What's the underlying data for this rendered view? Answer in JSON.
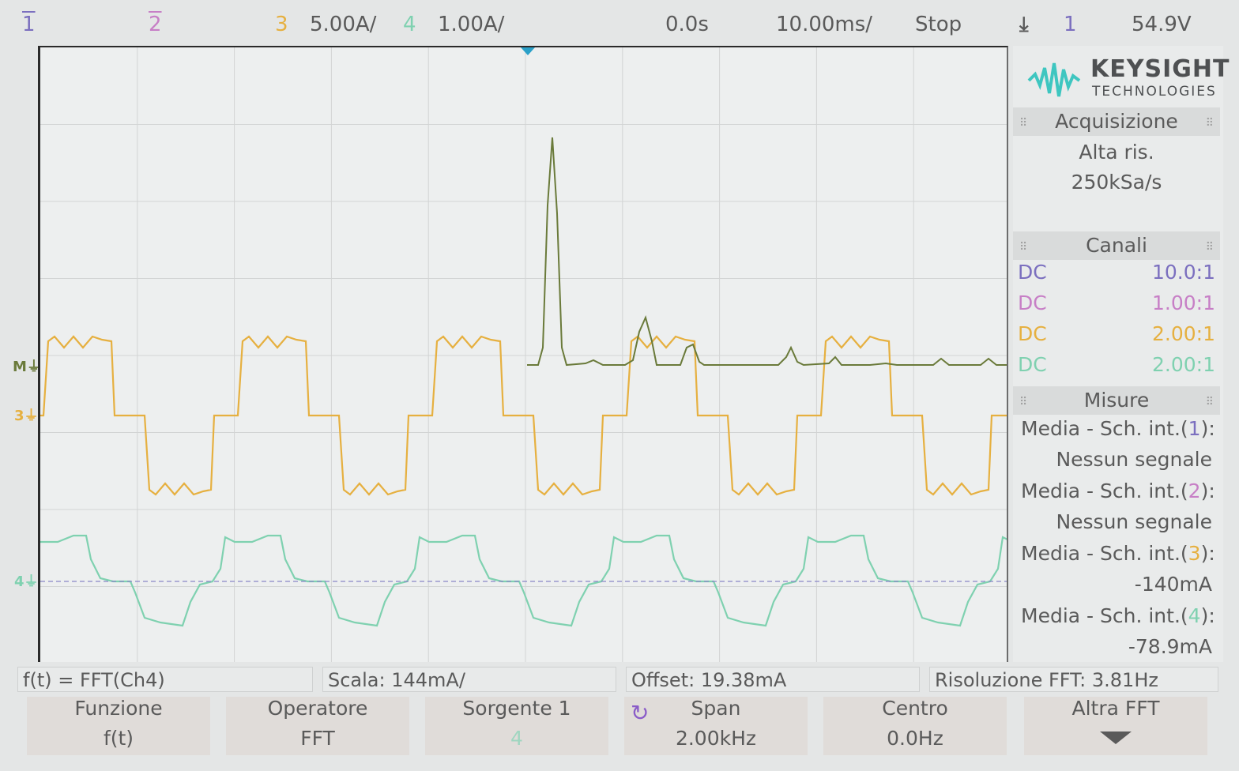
{
  "top_bar": {
    "ch1_label": "1",
    "ch2_label": "2",
    "ch3_label": "3",
    "ch3_scale": "5.00A/",
    "ch4_label": "4",
    "ch4_scale": "1.00A/",
    "time_delay": "0.0s",
    "time_base": "10.00ms/",
    "run_state": "Stop",
    "trigger_source": "1",
    "trigger_level": "54.9V"
  },
  "markers": {
    "math": "M",
    "ch3": "3",
    "ch4": "4"
  },
  "logo": {
    "brand": "KEYSIGHT",
    "sub": "TECHNOLOGIES"
  },
  "acquisition": {
    "title": "Acquisizione",
    "mode": "Alta ris.",
    "rate": "250kSa/s"
  },
  "channels": {
    "title": "Canali",
    "rows": [
      {
        "coupling": "DC",
        "probe": "10.0:1",
        "color": "#7b6fbf"
      },
      {
        "coupling": "DC",
        "probe": "1.00:1",
        "color": "#c77fc6"
      },
      {
        "coupling": "DC",
        "probe": "2.00:1",
        "color": "#e6b040"
      },
      {
        "coupling": "DC",
        "probe": "2.00:1",
        "color": "#7fd1b0"
      }
    ]
  },
  "measurements": {
    "title": "Misure",
    "items": [
      {
        "label_pre": "Media - Sch. int.(",
        "num": "1",
        "label_post": "):",
        "value": "Nessun segnale",
        "color": "#7b6fbf"
      },
      {
        "label_pre": "Media - Sch. int.(",
        "num": "2",
        "label_post": "):",
        "value": "Nessun segnale",
        "color": "#c77fc6"
      },
      {
        "label_pre": "Media - Sch. int.(",
        "num": "3",
        "label_post": "):",
        "value": "-140mA",
        "color": "#e6b040"
      },
      {
        "label_pre": "Media - Sch. int.(",
        "num": "4",
        "label_post": "):",
        "value": "-78.9mA",
        "color": "#7fd1b0"
      }
    ]
  },
  "info_bar": {
    "function": "f(t) = FFT(Ch4)",
    "scale": "Scala: 144mA/",
    "offset": "Offset: 19.38mA",
    "resolution": "Risoluzione FFT: 3.81Hz"
  },
  "softkeys": [
    {
      "label": "Funzione",
      "value": "f(t)"
    },
    {
      "label": "Operatore",
      "value": "FFT"
    },
    {
      "label": "Sorgente 1",
      "value": "4"
    },
    {
      "label": "Span",
      "value": "2.00kHz"
    },
    {
      "label": "Centro",
      "value": "0.0Hz"
    },
    {
      "label": "Altra FFT",
      "value": ""
    }
  ],
  "colors": {
    "ch1": "#7b6fbf",
    "ch2": "#c77fc6",
    "ch3": "#e6b040",
    "ch4": "#7fd1b0",
    "math": "#6a7a3a",
    "trigger": "#2aa0c8"
  }
}
